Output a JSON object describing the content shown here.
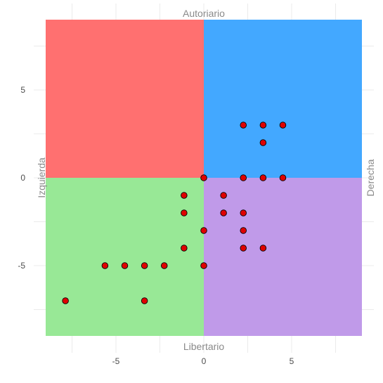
{
  "chart_data": {
    "type": "scatter",
    "title": "",
    "xlabel": "",
    "ylabel": "",
    "xlim": [
      -9,
      9
    ],
    "ylim": [
      -9,
      9
    ],
    "grid": true,
    "x_ticks": [
      -5,
      0,
      5
    ],
    "y_ticks": [
      5,
      0,
      -5
    ],
    "x_tick_labels": [
      "-5",
      "0",
      "5"
    ],
    "y_tick_labels": [
      "5",
      "0",
      "-5"
    ],
    "quadrant_labels": {
      "top": "Autoriario",
      "bottom": "Libertario",
      "left": "Izquierda",
      "right": "Derecha"
    },
    "quadrant_colors": {
      "top_left": "#ff7070",
      "top_right": "#43a8ff",
      "bottom_left": "#98e896",
      "bottom_right": "#c09ae9"
    },
    "point_color": "#e00000",
    "points": [
      {
        "x": 2.25,
        "y": 3
      },
      {
        "x": 3.375,
        "y": 3
      },
      {
        "x": 4.5,
        "y": 3
      },
      {
        "x": 3.375,
        "y": 2
      },
      {
        "x": 0,
        "y": 0
      },
      {
        "x": 2.25,
        "y": 0
      },
      {
        "x": 3.375,
        "y": 0
      },
      {
        "x": 4.5,
        "y": 0
      },
      {
        "x": -1.125,
        "y": -1
      },
      {
        "x": 1.125,
        "y": -1
      },
      {
        "x": -1.125,
        "y": -2
      },
      {
        "x": 1.125,
        "y": -2
      },
      {
        "x": 2.25,
        "y": -2
      },
      {
        "x": 0,
        "y": -3
      },
      {
        "x": 2.25,
        "y": -3
      },
      {
        "x": -1.125,
        "y": -4
      },
      {
        "x": 2.25,
        "y": -4
      },
      {
        "x": 3.375,
        "y": -4
      },
      {
        "x": -5.625,
        "y": -5
      },
      {
        "x": -4.5,
        "y": -5
      },
      {
        "x": -3.375,
        "y": -5
      },
      {
        "x": -2.25,
        "y": -5
      },
      {
        "x": 0,
        "y": -5
      },
      {
        "x": -7.875,
        "y": -7
      },
      {
        "x": -3.375,
        "y": -7
      }
    ]
  }
}
